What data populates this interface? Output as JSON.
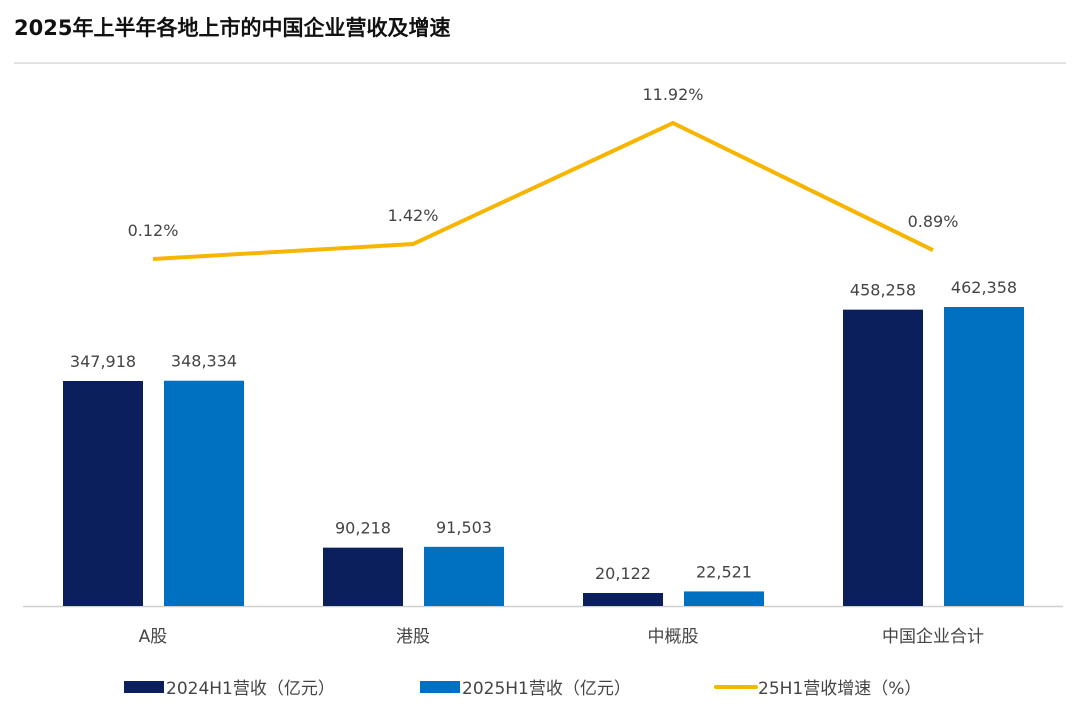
{
  "chart_data": {
    "type": "bar+line",
    "title": "2025年上半年各地上市的中国企业营收及增速",
    "categories": [
      "A股",
      "港股",
      "中概股",
      "中国企业合计"
    ],
    "series": [
      {
        "name": "2024H1营收（亿元）",
        "type": "bar",
        "color": "#0b1f5c",
        "values": [
          347918,
          90218,
          20122,
          458258
        ],
        "labels": [
          "347,918",
          "90,218",
          "20,122",
          "458,258"
        ]
      },
      {
        "name": "2025H1营收（亿元）",
        "type": "bar",
        "color": "#0070c0",
        "values": [
          348334,
          91503,
          22521,
          462358
        ],
        "labels": [
          "348,334",
          "91,503",
          "22,521",
          "462,358"
        ]
      },
      {
        "name": "25H1营收增速（%）",
        "type": "line",
        "color": "#f7b500",
        "values": [
          0.12,
          1.42,
          11.92,
          0.89
        ],
        "labels": [
          "0.12%",
          "1.42%",
          "11.92%",
          "0.89%"
        ]
      }
    ],
    "legend": "bottom",
    "grid": false
  }
}
